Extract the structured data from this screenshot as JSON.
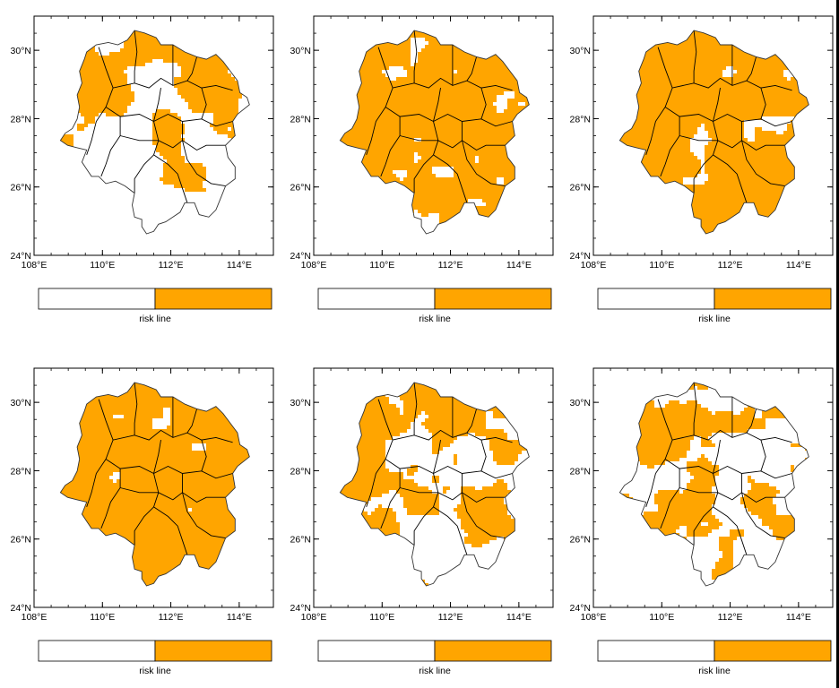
{
  "figure": {
    "panels": [
      {
        "id": "p1",
        "coverage": 0.48
      },
      {
        "id": "p2",
        "coverage": 0.68
      },
      {
        "id": "p3",
        "coverage": 0.8
      },
      {
        "id": "p4",
        "coverage": 0.9
      },
      {
        "id": "p5",
        "coverage": 0.52
      },
      {
        "id": "p6",
        "coverage": 0.45
      }
    ],
    "lat_ticks": [
      {
        "value": 30,
        "label": "30°N"
      },
      {
        "value": 28,
        "label": "28°N"
      },
      {
        "value": 26,
        "label": "26°N"
      },
      {
        "value": 24,
        "label": "24°N"
      }
    ],
    "lon_ticks": [
      {
        "value": 108,
        "label": "108°E"
      },
      {
        "value": 110,
        "label": "110°E"
      },
      {
        "value": 112,
        "label": "112°E"
      },
      {
        "value": 114,
        "label": "114°E"
      }
    ],
    "colorbar": {
      "label": "risk line",
      "colors": [
        "#ffffff",
        "#ffa500"
      ]
    },
    "colors": {
      "risk": "#ffa500",
      "no_risk": "#ffffff",
      "province_outline": "#000000",
      "frame": "#000000"
    },
    "lon_range": [
      108,
      115
    ],
    "lat_range": [
      24,
      31
    ]
  }
}
